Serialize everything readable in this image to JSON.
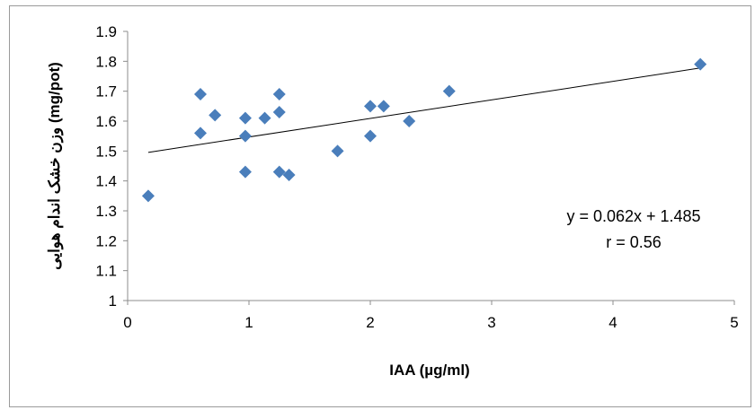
{
  "chart_data": {
    "type": "scatter",
    "xlabel": "IAA (µg/ml)",
    "ylabel": "وزن خشک اندام هوایی (mg/pot)",
    "xlim": [
      0,
      5
    ],
    "ylim": [
      1,
      1.9
    ],
    "x_ticks": [
      "0",
      "1",
      "2",
      "3",
      "4",
      "5"
    ],
    "y_ticks": [
      "1",
      "1.1",
      "1.2",
      "1.3",
      "1.4",
      "1.5",
      "1.6",
      "1.7",
      "1.8",
      "1.9"
    ],
    "grid": false,
    "marker": "diamond",
    "marker_color": "#4a7ebb",
    "series": [
      {
        "points": [
          {
            "x": 0.17,
            "y": 1.35
          },
          {
            "x": 0.6,
            "y": 1.69
          },
          {
            "x": 0.6,
            "y": 1.56
          },
          {
            "x": 0.72,
            "y": 1.62
          },
          {
            "x": 0.97,
            "y": 1.61
          },
          {
            "x": 0.97,
            "y": 1.55
          },
          {
            "x": 0.97,
            "y": 1.43
          },
          {
            "x": 1.13,
            "y": 1.61
          },
          {
            "x": 1.25,
            "y": 1.69
          },
          {
            "x": 1.25,
            "y": 1.63
          },
          {
            "x": 1.25,
            "y": 1.43
          },
          {
            "x": 1.33,
            "y": 1.42
          },
          {
            "x": 1.73,
            "y": 1.5
          },
          {
            "x": 2.0,
            "y": 1.65
          },
          {
            "x": 2.0,
            "y": 1.55
          },
          {
            "x": 2.11,
            "y": 1.65
          },
          {
            "x": 2.32,
            "y": 1.6
          },
          {
            "x": 2.65,
            "y": 1.7
          },
          {
            "x": 4.72,
            "y": 1.79
          }
        ]
      }
    ],
    "trendline": {
      "slope": 0.062,
      "intercept": 1.485,
      "x_start": 0.17,
      "x_end": 4.72
    },
    "annotations": [
      "y = 0.062x + 1.485",
      "r = 0.56"
    ]
  }
}
